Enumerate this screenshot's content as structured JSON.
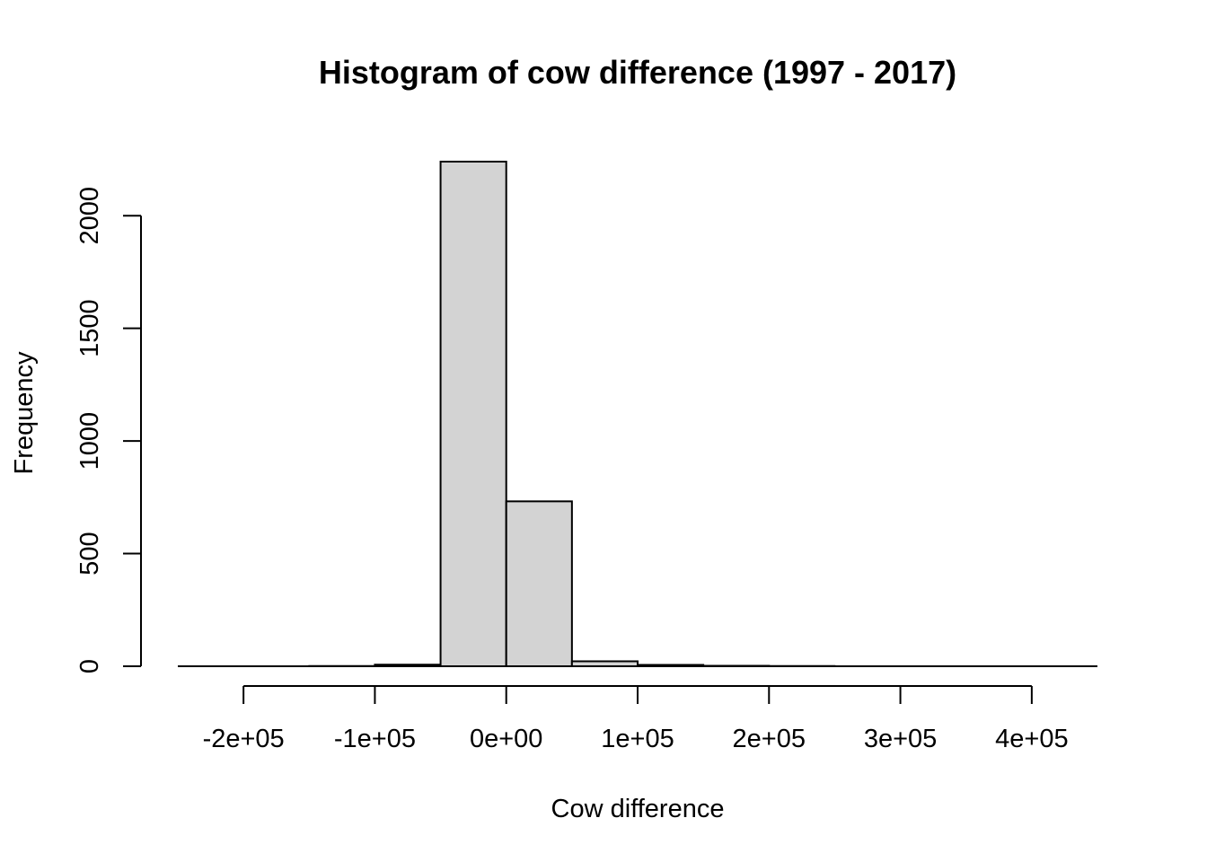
{
  "chart_data": {
    "type": "bar",
    "title": "Histogram of cow difference (1997 - 2017)",
    "xlabel": "Cow difference",
    "ylabel": "Frequency",
    "xlim": [
      -250000,
      450000
    ],
    "ylim": [
      0,
      2240
    ],
    "x_ticks": [
      {
        "value": -200000,
        "label": "-2e+05"
      },
      {
        "value": -100000,
        "label": "-1e+05"
      },
      {
        "value": 0,
        "label": "0e+00"
      },
      {
        "value": 100000,
        "label": "1e+05"
      },
      {
        "value": 200000,
        "label": "2e+05"
      },
      {
        "value": 300000,
        "label": "3e+05"
      },
      {
        "value": 400000,
        "label": "4e+05"
      }
    ],
    "y_ticks": [
      {
        "value": 0,
        "label": "0"
      },
      {
        "value": 500,
        "label": "500"
      },
      {
        "value": 1000,
        "label": "1000"
      },
      {
        "value": 1500,
        "label": "1500"
      },
      {
        "value": 2000,
        "label": "2000"
      }
    ],
    "bins": [
      {
        "start": -250000,
        "end": -200000,
        "count": 0
      },
      {
        "start": -200000,
        "end": -150000,
        "count": 0
      },
      {
        "start": -150000,
        "end": -100000,
        "count": 1
      },
      {
        "start": -100000,
        "end": -50000,
        "count": 7
      },
      {
        "start": -50000,
        "end": 0,
        "count": 2240
      },
      {
        "start": 0,
        "end": 50000,
        "count": 732
      },
      {
        "start": 50000,
        "end": 100000,
        "count": 22
      },
      {
        "start": 100000,
        "end": 150000,
        "count": 6
      },
      {
        "start": 150000,
        "end": 200000,
        "count": 2
      },
      {
        "start": 200000,
        "end": 250000,
        "count": 1
      },
      {
        "start": 250000,
        "end": 300000,
        "count": 0
      },
      {
        "start": 300000,
        "end": 350000,
        "count": 0
      },
      {
        "start": 350000,
        "end": 400000,
        "count": 0
      },
      {
        "start": 400000,
        "end": 450000,
        "count": 0
      }
    ]
  }
}
